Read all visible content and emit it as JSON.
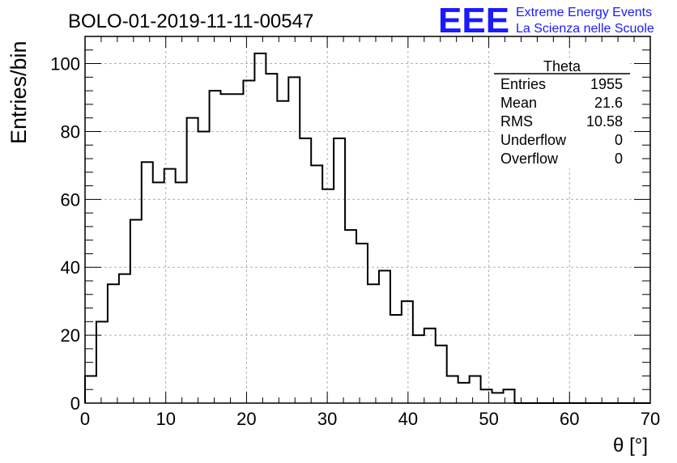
{
  "header": {
    "run_title": "BOLO-01-2019-11-11-00547",
    "logo_text": "EEE",
    "logo_line1": "Extreme Energy Events",
    "logo_line2": "La Scienza nelle Scuole"
  },
  "stats_box": {
    "title": "Theta",
    "rows": [
      {
        "label": "Entries",
        "value": "1955"
      },
      {
        "label": "Mean",
        "value": "21.6"
      },
      {
        "label": "RMS",
        "value": "10.58"
      },
      {
        "label": "Underflow",
        "value": "0"
      },
      {
        "label": "Overflow",
        "value": "0"
      }
    ]
  },
  "chart_data": {
    "type": "histogram",
    "title": "BOLO-01-2019-11-11-00547",
    "xlabel": "θ [°]",
    "ylabel": "Entries/bin",
    "xlim": [
      0,
      70
    ],
    "ylim": [
      0,
      108
    ],
    "grid": true,
    "bin_width": 1.4,
    "bin_start": 0,
    "x_ticks": [
      0,
      10,
      20,
      30,
      40,
      50,
      60,
      70
    ],
    "y_ticks": [
      0,
      20,
      40,
      60,
      80,
      100
    ],
    "values": [
      8,
      24,
      35,
      38,
      54,
      71,
      65,
      69,
      65,
      84,
      80,
      92,
      91,
      91,
      95,
      103,
      97,
      89,
      96,
      78,
      70,
      63,
      78,
      51,
      47,
      35,
      39,
      26,
      30,
      20,
      22,
      17,
      8,
      6,
      8,
      4,
      3,
      4,
      0,
      0,
      0,
      0,
      0,
      0,
      0,
      0,
      0,
      0,
      0,
      0
    ],
    "colors": {
      "line": "#000000",
      "grid": "#b0b0b0",
      "logo": "#1a1aff"
    }
  }
}
